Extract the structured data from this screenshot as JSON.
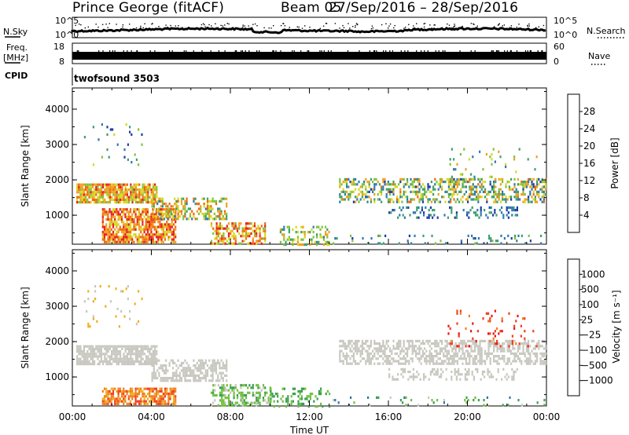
{
  "header": {
    "station": "Prince George (fitACF)",
    "beam": "Beam 05",
    "dates": "27/Sep/2016 – 28/Sep/2016"
  },
  "strips": {
    "nsky_label": "N.Sky",
    "nsky_ticks": [
      "10^5",
      "10^0"
    ],
    "nsearch_label": "N.Search",
    "freq_label": "Freq.",
    "freq_unit": "[MHz]",
    "freq_ticks": [
      "18",
      "8"
    ],
    "nave_label": "Nave",
    "nave_ticks": [
      "60",
      "0"
    ],
    "cpid_label": "CPID",
    "cpid_value": "twofsound 3503"
  },
  "chart_data": [
    {
      "type": "heatmap",
      "title": "",
      "ylabel": "Slant Range [km]",
      "xlabel": "",
      "x": [
        "00:00",
        "04:00",
        "08:00",
        "12:00",
        "16:00",
        "20:00",
        "00:00"
      ],
      "xlim_hours": [
        0,
        24
      ],
      "yticks": [
        1000,
        2000,
        3000,
        4000
      ],
      "ylim": [
        180,
        4600
      ],
      "colorbar": {
        "label": "Power [dB]",
        "ticks": [
          4,
          8,
          12,
          16,
          20,
          24,
          28
        ],
        "range": [
          0,
          32
        ],
        "colors": [
          "#0000ff",
          "#1e3ca8",
          "#2e7ab0",
          "#3ea06a",
          "#7fc33c",
          "#d8d820",
          "#f0a020",
          "#f06810",
          "#e82020"
        ]
      },
      "scatter_regions": [
        {
          "t0": 0.2,
          "t1": 4.3,
          "r0": 1350,
          "r1": 1900,
          "v0": 16,
          "v1": 30,
          "density": 0.85
        },
        {
          "t0": 1.5,
          "t1": 5.2,
          "r0": 250,
          "r1": 1200,
          "v0": 18,
          "v1": 32,
          "density": 0.75
        },
        {
          "t0": 4.0,
          "t1": 7.8,
          "r0": 900,
          "r1": 1500,
          "v0": 8,
          "v1": 28,
          "density": 0.5
        },
        {
          "t0": 7.0,
          "t1": 9.8,
          "r0": 200,
          "r1": 800,
          "v0": 16,
          "v1": 32,
          "density": 0.55
        },
        {
          "t0": 0.5,
          "t1": 3.5,
          "r0": 2400,
          "r1": 3600,
          "v0": 4,
          "v1": 20,
          "density": 0.05
        },
        {
          "t0": 10.5,
          "t1": 13.0,
          "r0": 200,
          "r1": 700,
          "v0": 10,
          "v1": 24,
          "density": 0.3
        },
        {
          "t0": 13.5,
          "t1": 24.0,
          "r0": 1400,
          "r1": 2050,
          "v0": 6,
          "v1": 26,
          "density": 0.45
        },
        {
          "t0": 16.0,
          "t1": 22.5,
          "r0": 950,
          "r1": 1250,
          "v0": 4,
          "v1": 14,
          "density": 0.25
        },
        {
          "t0": 19.0,
          "t1": 23.5,
          "r0": 1900,
          "r1": 2900,
          "v0": 8,
          "v1": 24,
          "density": 0.06
        },
        {
          "t0": 13.0,
          "t1": 24.0,
          "r0": 200,
          "r1": 450,
          "v0": 4,
          "v1": 16,
          "density": 0.12
        }
      ]
    },
    {
      "type": "heatmap",
      "title": "",
      "ylabel": "Slant Range [km]",
      "xlabel": "Time UT",
      "x": [
        "00:00",
        "04:00",
        "08:00",
        "12:00",
        "16:00",
        "20:00",
        "00:00"
      ],
      "xlim_hours": [
        0,
        24
      ],
      "yticks": [
        1000,
        2000,
        3000,
        4000
      ],
      "ylim": [
        180,
        4600
      ],
      "colorbar": {
        "label": "Velocity [m s⁻¹]",
        "ticks": [
          "1000",
          "500",
          "100",
          "25",
          "−25",
          "−100",
          "−500",
          "−1000"
        ],
        "colors": [
          "#1f3fa8",
          "#2e7aa0",
          "#3aa050",
          "#70c040",
          "#c8c8c0",
          "#f0b020",
          "#f08020",
          "#f04020",
          "#e81818"
        ]
      },
      "scatter_regions": [
        {
          "t0": 0.2,
          "t1": 4.3,
          "r0": 1350,
          "r1": 1900,
          "v0": 4,
          "v1": 4,
          "density": 0.8
        },
        {
          "t0": 1.5,
          "t1": 5.2,
          "r0": 250,
          "r1": 700,
          "v0": 5,
          "v1": 7,
          "density": 0.7
        },
        {
          "t0": 4.0,
          "t1": 7.8,
          "r0": 900,
          "r1": 1500,
          "v0": 4,
          "v1": 4,
          "density": 0.6
        },
        {
          "t0": 7.0,
          "t1": 10.0,
          "r0": 200,
          "r1": 800,
          "v0": 2,
          "v1": 4,
          "density": 0.4
        },
        {
          "t0": 0.5,
          "t1": 3.5,
          "r0": 2400,
          "r1": 3600,
          "v0": 4,
          "v1": 5,
          "density": 0.05
        },
        {
          "t0": 13.5,
          "t1": 24.0,
          "r0": 1400,
          "r1": 2050,
          "v0": 4,
          "v1": 4,
          "density": 0.55
        },
        {
          "t0": 16.0,
          "t1": 22.5,
          "r0": 950,
          "r1": 1250,
          "v0": 4,
          "v1": 4,
          "density": 0.3
        },
        {
          "t0": 19.0,
          "t1": 23.5,
          "r0": 1900,
          "r1": 2900,
          "v0": 6,
          "v1": 8,
          "density": 0.08
        },
        {
          "t0": 10.0,
          "t1": 13.0,
          "r0": 200,
          "r1": 700,
          "v0": 2,
          "v1": 3,
          "density": 0.25
        },
        {
          "t0": 13.0,
          "t1": 24.0,
          "r0": 200,
          "r1": 450,
          "v0": 1,
          "v1": 4,
          "density": 0.1
        }
      ]
    }
  ]
}
